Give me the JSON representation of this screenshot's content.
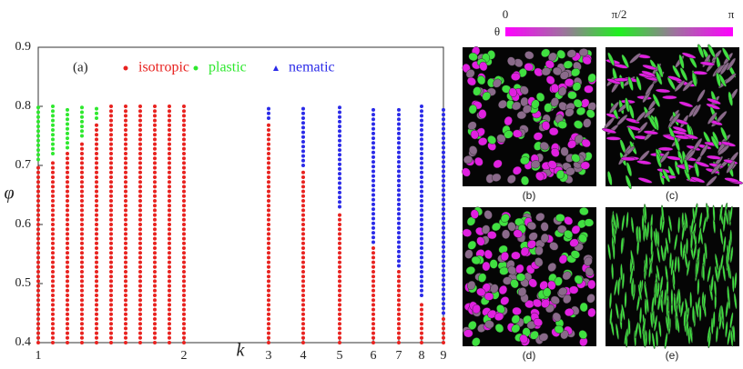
{
  "chart_data": {
    "type": "range-dots",
    "panel_label": "(a)",
    "x_label": "k",
    "y_label": "φ",
    "xlim": [
      1,
      9
    ],
    "ylim": [
      0.4,
      0.9
    ],
    "xticks": [
      1,
      2,
      3,
      4,
      5,
      6,
      7,
      8,
      9
    ],
    "yticks": [
      0.4,
      0.5,
      0.6,
      0.7,
      0.8,
      0.9
    ],
    "series": [
      {
        "name": "isotropic",
        "color": "#e8221f",
        "marker": "circle",
        "x": [
          1,
          1.1,
          1.2,
          1.3,
          1.4,
          1.5,
          1.6,
          1.7,
          1.8,
          1.9,
          2,
          3,
          4,
          5,
          6,
          7,
          8,
          9
        ],
        "low": [
          0.4,
          0.4,
          0.4,
          0.4,
          0.4,
          0.4,
          0.4,
          0.4,
          0.4,
          0.4,
          0.4,
          0.4,
          0.4,
          0.4,
          0.4,
          0.4,
          0.4,
          0.4
        ],
        "high": [
          0.7,
          0.71,
          0.72,
          0.74,
          0.77,
          0.8,
          0.8,
          0.8,
          0.8,
          0.8,
          0.8,
          0.77,
          0.69,
          0.62,
          0.56,
          0.52,
          0.47,
          0.44
        ]
      },
      {
        "name": "plastic",
        "color": "#2ee82e",
        "marker": "circle",
        "x": [
          1,
          1.1,
          1.2,
          1.3,
          1.4
        ],
        "low": [
          0.71,
          0.72,
          0.73,
          0.75,
          0.78
        ],
        "high": [
          0.8,
          0.8,
          0.8,
          0.8,
          0.8
        ]
      },
      {
        "name": "nematic",
        "color": "#2a2ae8",
        "marker": "triangle",
        "x": [
          3,
          4,
          5,
          6,
          7,
          8,
          9
        ],
        "low": [
          0.78,
          0.7,
          0.63,
          0.57,
          0.53,
          0.48,
          0.45
        ],
        "high": [
          0.8,
          0.8,
          0.8,
          0.8,
          0.8,
          0.8,
          0.8
        ]
      }
    ]
  },
  "colorbar": {
    "symbol": "θ",
    "labels": [
      "0",
      "π/2",
      "π"
    ]
  },
  "panels": [
    {
      "label": "(b)"
    },
    {
      "label": "(c)"
    },
    {
      "label": "(d)"
    },
    {
      "label": "(e)"
    }
  ]
}
